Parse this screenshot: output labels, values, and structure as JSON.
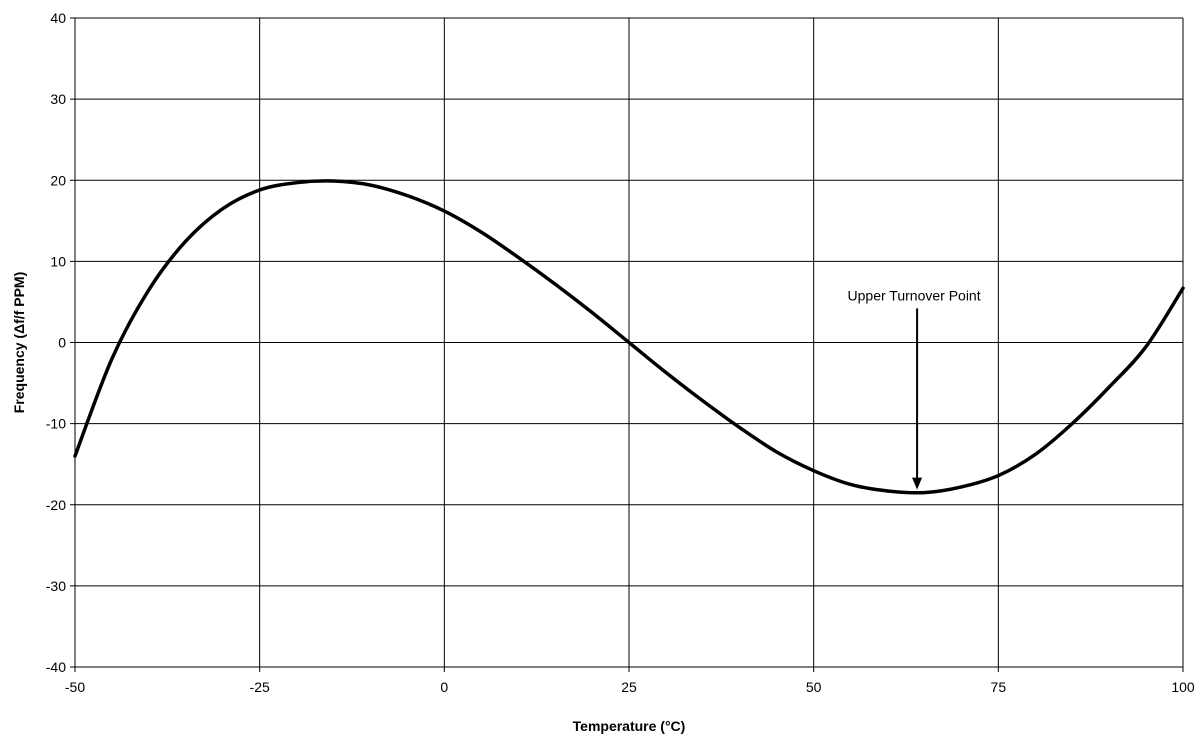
{
  "chart_data": {
    "type": "line",
    "title": "",
    "xlabel": "Temperature (°C)",
    "ylabel": "Frequency (Δf/f PPM)",
    "xlim": [
      -50,
      100
    ],
    "ylim": [
      -40,
      40
    ],
    "x_ticks": [
      -50,
      -25,
      0,
      25,
      50,
      75,
      100
    ],
    "y_ticks": [
      -40,
      -30,
      -20,
      -10,
      0,
      10,
      20,
      30,
      40
    ],
    "x_tick_labels": [
      "-50",
      "-25",
      "0",
      "25",
      "50",
      "75",
      "100"
    ],
    "y_tick_labels": [
      "-40",
      "-30",
      "-20",
      "-10",
      "0",
      "10",
      "20",
      "30",
      "40"
    ],
    "grid": true,
    "legend": "none",
    "line_color": "#000000",
    "series": [
      {
        "x": [
          -50,
          -45,
          -40,
          -35,
          -30,
          -25,
          -20,
          -15,
          -10,
          -5,
          0,
          5,
          10,
          15,
          20,
          25,
          30,
          35,
          40,
          45,
          50,
          55,
          60,
          65,
          70,
          75,
          80,
          85,
          90,
          95,
          100
        ],
        "values": [
          -14,
          -2,
          6.5,
          12.5,
          16.5,
          18.8,
          19.7,
          19.9,
          19.4,
          18.1,
          16.2,
          13.6,
          10.5,
          7.2,
          3.7,
          0,
          -3.7,
          -7.2,
          -10.5,
          -13.5,
          -15.8,
          -17.5,
          -18.3,
          -18.5,
          -17.8,
          -16.4,
          -13.8,
          -10,
          -5.5,
          -0.5,
          6.7
        ]
      }
    ],
    "annotations": [
      {
        "text": "Upper Turnover Point",
        "x": 64,
        "y": -18.5
      }
    ]
  }
}
